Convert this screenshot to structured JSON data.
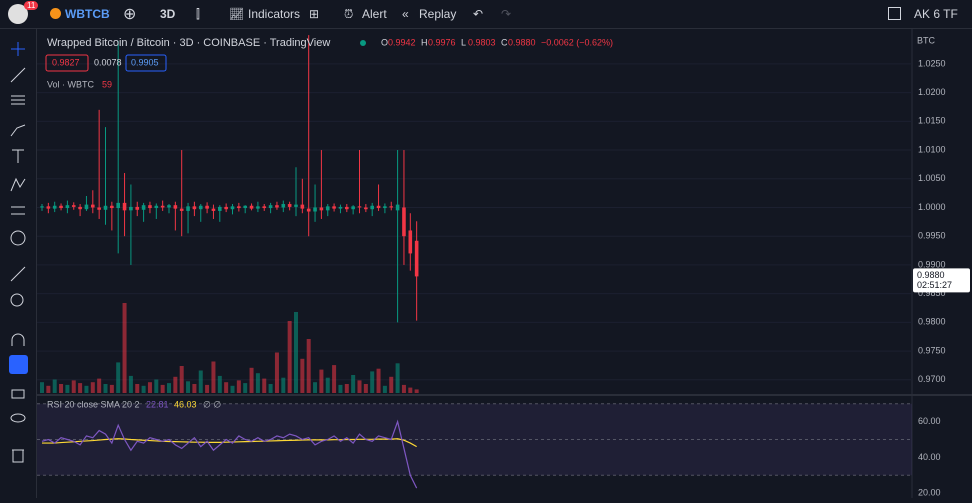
{
  "toolbar": {
    "badge": "11",
    "symbol": "WBTCBTC",
    "interval": "3D",
    "indicators": "Indicators",
    "alert": "Alert",
    "replay": "Replay",
    "layout": "AK 6 TF"
  },
  "legend": {
    "title": "Wrapped Bitcoin / Bitcoin · 3D · COINBASE · TradingView",
    "ohlc": [
      {
        "label": "O",
        "value": "0.9942"
      },
      {
        "label": "H",
        "value": "0.9976"
      },
      {
        "label": "L",
        "value": "0.9803"
      },
      {
        "label": "C",
        "value": "0.9880"
      }
    ],
    "change": "−0.0062 (−0.62%)",
    "bid": "0.9827",
    "spread": "0.0078",
    "ask": "0.9905",
    "volume_label": "Vol · WBTC",
    "volume_value": "59"
  },
  "rsi_legend": {
    "name": "RSI 20 close SMA 20 2",
    "rsi": "22.81",
    "sma": "46.03",
    "extra": "∅ ∅"
  },
  "chart_data": [
    {
      "type": "candlestick",
      "currency": "BTC",
      "up_color": "#089981",
      "down_color": "#f23645",
      "ylim": [
        0.9677,
        1.0309
      ],
      "yticks": [
        {
          "value": 0.97,
          "label": "0.9700"
        },
        {
          "value": 0.975,
          "label": "0.9750"
        },
        {
          "value": 0.98,
          "label": "0.9800"
        },
        {
          "value": 0.985,
          "label": "0.9850"
        },
        {
          "value": 0.99,
          "label": "0.9900"
        },
        {
          "value": 0.995,
          "label": "0.9950"
        },
        {
          "value": 1,
          "label": "1.0000"
        },
        {
          "value": 1.005,
          "label": "1.0050"
        },
        {
          "value": 1.01,
          "label": "1.0100"
        },
        {
          "value": 1.015,
          "label": "1.0150"
        },
        {
          "value": 1.02,
          "label": "1.0200"
        },
        {
          "value": 1.025,
          "label": "1.0250"
        }
      ],
      "current_price": {
        "value": 0.988,
        "label": "0.9880"
      },
      "countdown": "02:51:27",
      "candles": [
        [
          1.0,
          1.0006,
          0.9994,
          1.0002
        ],
        [
          1.0002,
          1.0008,
          0.999,
          0.9998
        ],
        [
          0.9998,
          1.001,
          0.9992,
          1.0003
        ],
        [
          1.0003,
          1.0007,
          0.9995,
          0.9999
        ],
        [
          0.9999,
          1.0012,
          0.999,
          1.0004
        ],
        [
          1.0004,
          1.0009,
          0.9996,
          1.0001
        ],
        [
          1.0001,
          1.0006,
          0.9985,
          0.9997
        ],
        [
          0.9997,
          1.002,
          0.9994,
          1.0005
        ],
        [
          1.0005,
          1.003,
          0.999,
          1.0
        ],
        [
          1.0,
          1.017,
          0.998,
          0.9996
        ],
        [
          0.9996,
          1.014,
          0.997,
          1.0003
        ],
        [
          1.0003,
          1.001,
          0.996,
          0.9999
        ],
        [
          0.9999,
          1.029,
          0.992,
          1.0008
        ],
        [
          1.0008,
          1.006,
          0.995,
          0.9995
        ],
        [
          0.9995,
          1.004,
          0.99,
          1.0001
        ],
        [
          1.0001,
          1.001,
          0.9985,
          0.9996
        ],
        [
          0.9996,
          1.0008,
          0.9975,
          1.0004
        ],
        [
          1.0004,
          1.001,
          0.999,
          0.9999
        ],
        [
          0.9999,
          1.0007,
          0.998,
          1.0003
        ],
        [
          1.0003,
          1.0012,
          0.9994,
          1.0
        ],
        [
          1.0,
          1.0006,
          0.999,
          1.0004
        ],
        [
          1.0004,
          1.001,
          0.996,
          0.9998
        ],
        [
          0.9998,
          1.01,
          0.995,
          0.9994
        ],
        [
          0.9994,
          1.0008,
          0.9955,
          1.0002
        ],
        [
          1.0002,
          1.001,
          0.9985,
          0.9997
        ],
        [
          0.9997,
          1.0006,
          0.9975,
          1.0003
        ],
        [
          1.0003,
          1.0009,
          0.999,
          0.9998
        ],
        [
          0.9998,
          1.0005,
          0.998,
          0.9994
        ],
        [
          0.9994,
          1.0004,
          0.9975,
          1.0001
        ],
        [
          1.0001,
          1.0007,
          0.9992,
          0.9997
        ],
        [
          0.9997,
          1.0006,
          0.9988,
          1.0002
        ],
        [
          1.0002,
          1.0008,
          0.9993,
          0.9999
        ],
        [
          0.9999,
          1.0004,
          0.999,
          1.0003
        ],
        [
          1.0003,
          1.0007,
          0.9995,
          0.9998
        ],
        [
          0.9998,
          1.001,
          0.9992,
          1.0002
        ],
        [
          1.0002,
          1.0006,
          0.9994,
          0.9999
        ],
        [
          0.9999,
          1.0008,
          0.999,
          1.0004
        ],
        [
          1.0004,
          1.001,
          0.9996,
          1.0
        ],
        [
          1.0,
          1.0012,
          0.9992,
          1.0006
        ],
        [
          1.0006,
          1.001,
          0.9995,
          1.0001
        ],
        [
          1.0001,
          1.007,
          0.9985,
          1.0005
        ],
        [
          1.0005,
          1.005,
          0.999,
          0.9998
        ],
        [
          0.9998,
          1.03,
          0.995,
          0.9993
        ],
        [
          0.9993,
          1.004,
          0.9975,
          1.0
        ],
        [
          1.0,
          1.01,
          0.998,
          0.9995
        ],
        [
          0.9995,
          1.0006,
          0.9985,
          1.0002
        ],
        [
          1.0002,
          1.0007,
          0.9993,
          0.9998
        ],
        [
          0.9998,
          1.0005,
          0.999,
          1.0001
        ],
        [
          1.0001,
          1.0006,
          0.9992,
          0.9997
        ],
        [
          0.9997,
          1.0004,
          0.9988,
          1.0002
        ],
        [
          1.0002,
          1.01,
          0.999,
          1.0
        ],
        [
          1.0,
          1.0006,
          0.9992,
          0.9997
        ],
        [
          0.9997,
          1.0008,
          0.9985,
          1.0003
        ],
        [
          1.0003,
          1.004,
          0.9994,
          0.9999
        ],
        [
          0.9999,
          1.0007,
          0.999,
          1.0002
        ],
        [
          1.0002,
          1.001,
          0.9995,
          1.0
        ],
        [
          0.9995,
          1.01,
          0.98,
          1.0005
        ],
        [
          1.0,
          1.01,
          0.99,
          0.995
        ],
        [
          0.996,
          0.999,
          0.989,
          0.992
        ],
        [
          0.9942,
          0.9976,
          0.9803,
          0.988
        ]
      ],
      "volumes": [
        12,
        8,
        15,
        10,
        9,
        14,
        11,
        8,
        12,
        16,
        10,
        9,
        34,
        100,
        19,
        10,
        8,
        12,
        15,
        9,
        11,
        18,
        30,
        13,
        10,
        25,
        9,
        35,
        19,
        12,
        8,
        14,
        11,
        28,
        22,
        16,
        10,
        45,
        17,
        80,
        90,
        38,
        60,
        12,
        26,
        17,
        31,
        9,
        10,
        20,
        14,
        10,
        24,
        27,
        8,
        18,
        33,
        9,
        6,
        4
      ]
    },
    {
      "type": "line",
      "ylim": [
        17.3,
        73.2
      ],
      "yticks": [
        {
          "value": 60,
          "label": "60.00"
        },
        {
          "value": 40,
          "label": "40.00"
        },
        {
          "value": 20,
          "label": "20.00"
        }
      ],
      "bands": [
        70,
        50,
        30
      ],
      "band_color": "#7e57c2",
      "rsi_color": "#7e57c2",
      "sma_color": "#fdd835",
      "rsi_values": [
        49,
        50,
        48,
        51,
        50,
        49,
        47,
        52,
        51,
        55,
        53,
        48,
        58,
        50,
        44,
        49,
        48,
        51,
        50,
        49,
        50,
        47,
        45,
        48,
        51,
        46,
        49,
        44,
        47,
        50,
        48,
        52,
        50,
        49,
        51,
        49,
        50,
        52,
        51,
        53,
        52,
        50,
        51,
        47,
        49,
        50,
        52,
        49,
        51,
        48,
        53,
        50,
        49,
        52,
        51,
        50,
        60,
        45,
        30,
        22.81
      ],
      "sma_values": [
        48,
        48,
        48,
        48.3,
        48.5,
        48.7,
        49,
        49.2,
        49.4,
        49.7,
        50,
        50.2,
        50.4,
        50.3,
        50,
        49.8,
        49.6,
        49.4,
        49.2,
        49,
        48.9,
        48.8,
        48.7,
        48.6,
        48.5,
        48.5,
        48.4,
        48.4,
        48.4,
        48.5,
        48.6,
        48.7,
        48.8,
        48.9,
        49,
        49.1,
        49.2,
        49.3,
        49.4,
        49.5,
        49.6,
        49.7,
        49.8,
        49.8,
        49.8,
        49.8,
        49.9,
        49.9,
        50,
        50,
        50.1,
        50.1,
        50.1,
        50.2,
        50.2,
        50.2,
        50.4,
        49.6,
        48,
        46.03
      ]
    }
  ]
}
